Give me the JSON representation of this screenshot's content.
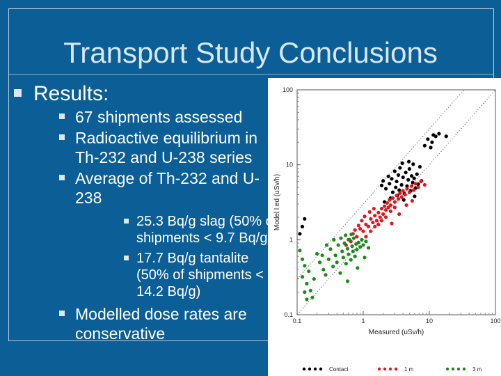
{
  "slide": {
    "title": "Transport Study Conclusions",
    "bullets": {
      "results_label": "Results:",
      "items": [
        "67 shipments assessed",
        "Radioactive equilibrium in Th-232 and U-238 series",
        "Average of Th-232 and U-238"
      ],
      "sub_items": [
        "25.3 Bq/g slag (50% of shipments < 9.7 Bq/g)",
        "17.7 Bq/g tantalite (50% of shipments < 14.2 Bq/g)"
      ],
      "final_item": "Modelled dose rates are conservative"
    }
  },
  "colors": {
    "background": "#0b5e96",
    "contact": "#000000",
    "one_m": "#e8141c",
    "three_m": "#1a8a1a"
  },
  "chart_data": {
    "type": "scatter",
    "xlabel": "Measured (uSv/h)",
    "ylabel": "Model l ed (uSv/h)",
    "x_scale": "log",
    "y_scale": "log",
    "xlim": [
      0.1,
      100
    ],
    "ylim": [
      0.1,
      100
    ],
    "x_ticks": [
      "0.1",
      "1",
      "10",
      "100"
    ],
    "y_ticks": [
      "0.1",
      "1",
      "10",
      "100"
    ],
    "reference_lines": [
      {
        "kind": "y=x",
        "style": "dotted"
      },
      {
        "kind": "y=3x",
        "style": "dotted"
      }
    ],
    "legend_position": "bottom",
    "series": [
      {
        "name": "Contact",
        "color": "#000000",
        "points": [
          [
            0.12,
            1.5
          ],
          [
            0.13,
            1.9
          ],
          [
            0.11,
            1.2
          ],
          [
            1.9,
            5.3
          ],
          [
            2.0,
            6.1
          ],
          [
            2.2,
            4.8
          ],
          [
            2.4,
            7.0
          ],
          [
            2.5,
            5.6
          ],
          [
            2.7,
            6.5
          ],
          [
            2.8,
            4.3
          ],
          [
            3.0,
            8.2
          ],
          [
            3.1,
            5.0
          ],
          [
            3.2,
            6.0
          ],
          [
            3.4,
            7.3
          ],
          [
            3.5,
            4.6
          ],
          [
            3.6,
            9.1
          ],
          [
            3.8,
            5.4
          ],
          [
            4.0,
            6.8
          ],
          [
            4.2,
            4.1
          ],
          [
            4.4,
            7.9
          ],
          [
            4.6,
            5.2
          ],
          [
            4.8,
            6.3
          ],
          [
            5.0,
            8.8
          ],
          [
            5.2,
            4.5
          ],
          [
            5.4,
            7.1
          ],
          [
            5.6,
            5.8
          ],
          [
            5.9,
            6.6
          ],
          [
            6.2,
            4.9
          ],
          [
            6.5,
            7.5
          ],
          [
            6.8,
            5.5
          ],
          [
            7.2,
            9.4
          ],
          [
            7.6,
            6.1
          ],
          [
            2.6,
            3.6
          ],
          [
            3.3,
            3.9
          ],
          [
            4.1,
            3.4
          ],
          [
            2.1,
            3.2
          ],
          [
            6.0,
            3.8
          ],
          [
            5.7,
            10.2
          ],
          [
            4.9,
            11.0
          ],
          [
            3.9,
            10.5
          ],
          [
            8.5,
            18
          ],
          [
            9.5,
            22
          ],
          [
            10.5,
            17
          ],
          [
            11.5,
            25
          ],
          [
            12.5,
            24
          ],
          [
            14,
            26
          ],
          [
            18,
            24
          ],
          [
            11,
            20
          ]
        ]
      },
      {
        "name": "1 m",
        "color": "#e8141c",
        "points": [
          [
            0.6,
            1.0
          ],
          [
            0.7,
            1.2
          ],
          [
            0.8,
            1.1
          ],
          [
            0.9,
            1.4
          ],
          [
            1.0,
            1.3
          ],
          [
            1.1,
            1.6
          ],
          [
            1.2,
            1.5
          ],
          [
            1.3,
            1.9
          ],
          [
            1.4,
            1.7
          ],
          [
            1.5,
            2.1
          ],
          [
            1.6,
            1.8
          ],
          [
            1.7,
            2.3
          ],
          [
            1.8,
            2.0
          ],
          [
            1.9,
            2.6
          ],
          [
            2.0,
            2.2
          ],
          [
            2.1,
            2.8
          ],
          [
            2.2,
            2.5
          ],
          [
            2.3,
            3.1
          ],
          [
            2.4,
            2.7
          ],
          [
            2.5,
            3.4
          ],
          [
            2.6,
            2.9
          ],
          [
            2.8,
            3.6
          ],
          [
            3.0,
            3.2
          ],
          [
            3.2,
            3.9
          ],
          [
            3.4,
            3.5
          ],
          [
            3.6,
            4.2
          ],
          [
            3.8,
            3.7
          ],
          [
            4.0,
            4.5
          ],
          [
            4.3,
            4.0
          ],
          [
            4.6,
            4.8
          ],
          [
            5.0,
            4.3
          ],
          [
            5.4,
            5.2
          ],
          [
            5.8,
            4.6
          ],
          [
            6.2,
            5.6
          ],
          [
            6.8,
            5.0
          ],
          [
            7.5,
            6.0
          ],
          [
            8.5,
            5.4
          ],
          [
            1.1,
            1.1
          ],
          [
            1.3,
            1.3
          ],
          [
            1.5,
            1.5
          ],
          [
            1.7,
            1.6
          ],
          [
            1.9,
            1.8
          ],
          [
            2.2,
            2.0
          ],
          [
            2.6,
            2.4
          ],
          [
            3.0,
            2.7
          ],
          [
            0.75,
            1.35
          ],
          [
            0.85,
            1.55
          ],
          [
            0.95,
            1.8
          ],
          [
            1.05,
            2.05
          ],
          [
            1.25,
            2.35
          ],
          [
            1.45,
            2.6
          ],
          [
            2.7,
            1.65
          ],
          [
            3.5,
            2.2
          ],
          [
            4.5,
            2.9
          ],
          [
            5.5,
            3.3
          ],
          [
            0.55,
            0.85
          ],
          [
            0.65,
            0.95
          ]
        ]
      },
      {
        "name": "3 m",
        "color": "#1a8a1a",
        "points": [
          [
            0.11,
            0.72
          ],
          [
            0.12,
            0.55
          ],
          [
            0.13,
            0.45
          ],
          [
            0.12,
            0.32
          ],
          [
            0.14,
            0.26
          ],
          [
            0.15,
            0.38
          ],
          [
            0.16,
            0.21
          ],
          [
            0.17,
            0.17
          ],
          [
            0.18,
            0.3
          ],
          [
            0.2,
            0.65
          ],
          [
            0.22,
            0.5
          ],
          [
            0.25,
            0.4
          ],
          [
            0.27,
            0.34
          ],
          [
            0.3,
            0.55
          ],
          [
            0.32,
            0.75
          ],
          [
            0.35,
            0.44
          ],
          [
            0.38,
            0.62
          ],
          [
            0.4,
            0.5
          ],
          [
            0.42,
            0.85
          ],
          [
            0.45,
            0.36
          ],
          [
            0.48,
            0.7
          ],
          [
            0.5,
            0.58
          ],
          [
            0.52,
            0.9
          ],
          [
            0.55,
            0.48
          ],
          [
            0.58,
            0.76
          ],
          [
            0.6,
            0.64
          ],
          [
            0.62,
            1.0
          ],
          [
            0.65,
            0.54
          ],
          [
            0.68,
            0.82
          ],
          [
            0.7,
            0.7
          ],
          [
            0.72,
            1.05
          ],
          [
            0.75,
            0.6
          ],
          [
            0.78,
            0.88
          ],
          [
            0.8,
            0.74
          ],
          [
            0.85,
            0.92
          ],
          [
            0.9,
            0.8
          ],
          [
            0.95,
            1.0
          ],
          [
            1.0,
            0.85
          ],
          [
            1.1,
            0.95
          ],
          [
            1.2,
            0.78
          ],
          [
            0.58,
            0.28
          ],
          [
            0.82,
            0.42
          ],
          [
            1.05,
            0.58
          ],
          [
            0.46,
            1.05
          ],
          [
            0.54,
            1.15
          ],
          [
            0.66,
            1.18
          ],
          [
            0.36,
            1.0
          ],
          [
            0.28,
            0.85
          ],
          [
            0.24,
            0.62
          ],
          [
            0.14,
            0.16
          ],
          [
            0.13,
            0.2
          ]
        ]
      }
    ]
  }
}
